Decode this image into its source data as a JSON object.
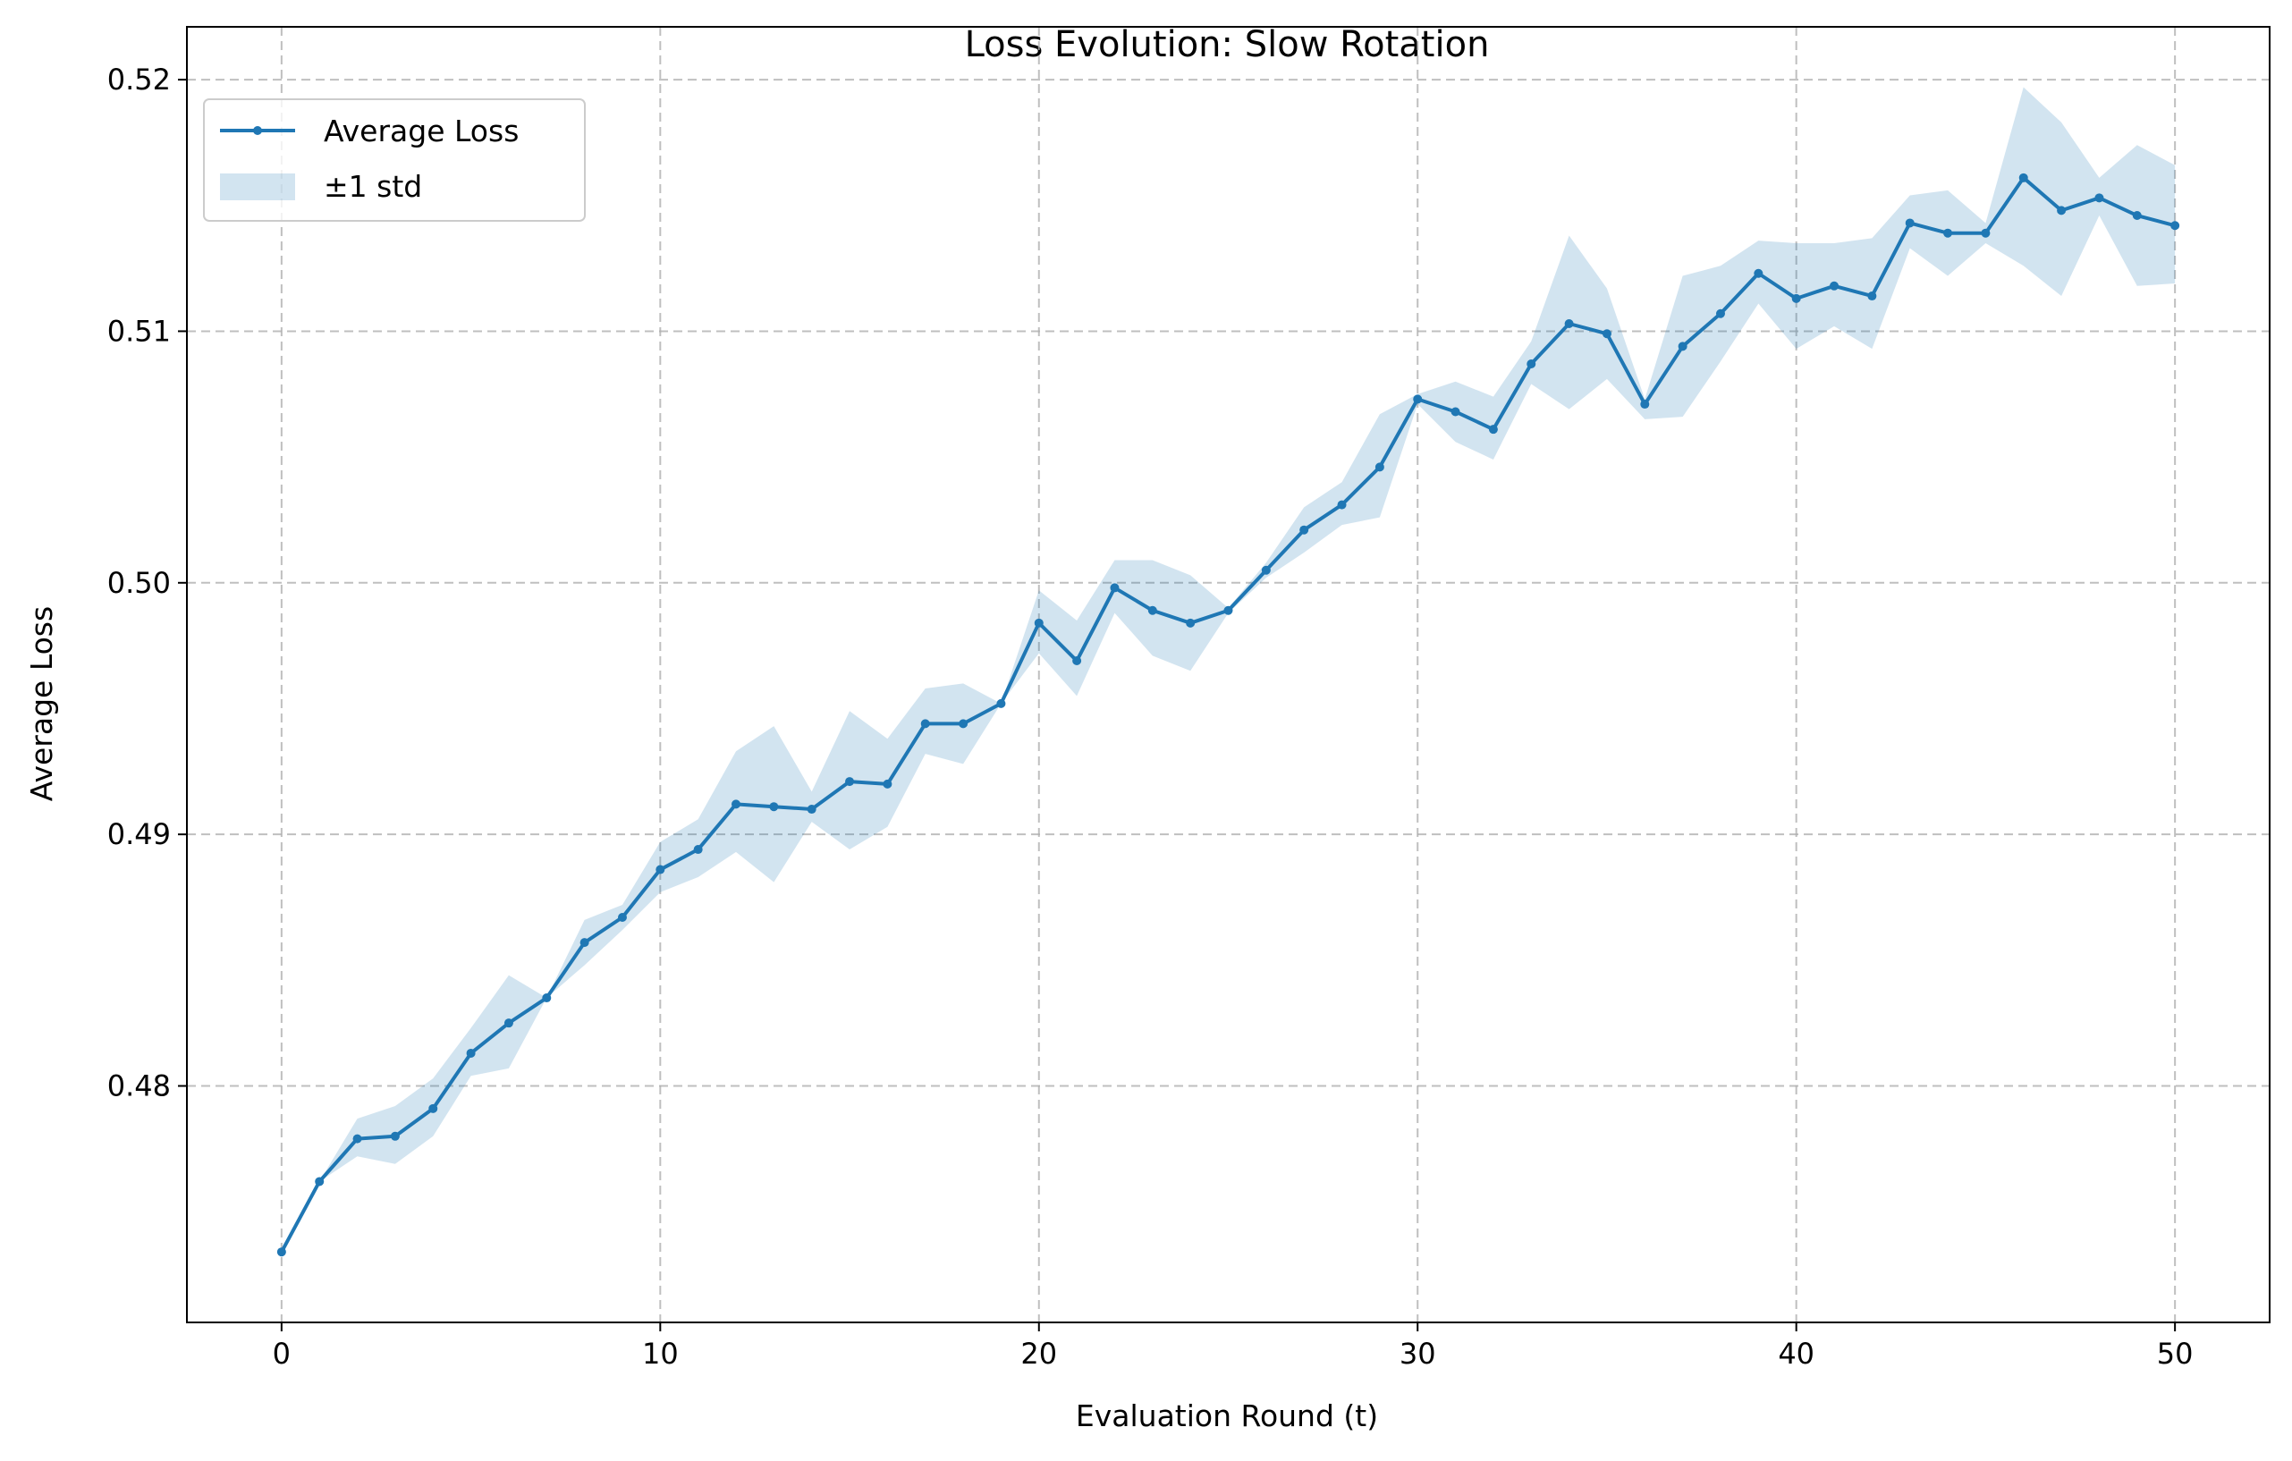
{
  "chart_data": {
    "type": "line",
    "title": "Loss Evolution: Slow Rotation",
    "xlabel": "Evaluation Round (t)",
    "ylabel": "Average Loss",
    "xlim": [
      -2.5,
      52.5
    ],
    "ylim": [
      0.4706,
      0.5221
    ],
    "x_ticks": [
      0,
      10,
      20,
      30,
      40,
      50
    ],
    "x_tick_labels": [
      "0",
      "10",
      "20",
      "30",
      "40",
      "50"
    ],
    "y_ticks": [
      0.48,
      0.49,
      0.5,
      0.51,
      0.52
    ],
    "y_tick_labels": [
      "0.48",
      "0.49",
      "0.50",
      "0.51",
      "0.52"
    ],
    "grid": true,
    "legend_position": "top-left",
    "legend": [
      "Average Loss",
      "±1 std"
    ],
    "line_color": "#1f77b4",
    "band_color": "#1f77b4",
    "series": [
      {
        "name": "Average Loss",
        "x": [
          0,
          1,
          2,
          3,
          4,
          5,
          6,
          7,
          8,
          9,
          10,
          11,
          12,
          13,
          14,
          15,
          16,
          17,
          18,
          19,
          20,
          21,
          22,
          23,
          24,
          25,
          26,
          27,
          28,
          29,
          30,
          31,
          32,
          33,
          34,
          35,
          36,
          37,
          38,
          39,
          40,
          41,
          42,
          43,
          44,
          45,
          46,
          47,
          48,
          49,
          50
        ],
        "values": [
          0.4734,
          0.4762,
          0.4779,
          0.478,
          0.4791,
          0.4813,
          0.4825,
          0.4835,
          0.4857,
          0.4867,
          0.4886,
          0.4894,
          0.4912,
          0.4911,
          0.491,
          0.4921,
          0.492,
          0.4944,
          0.4944,
          0.4952,
          0.4984,
          0.4969,
          0.4998,
          0.4989,
          0.4984,
          0.4989,
          0.5005,
          0.5021,
          0.5031,
          0.5046,
          0.5073,
          0.5068,
          0.5061,
          0.5087,
          0.5103,
          0.5099,
          0.5071,
          0.5094,
          0.5107,
          0.5123,
          0.5113,
          0.5118,
          0.5114,
          0.5143,
          0.5139,
          0.5139,
          0.5161,
          0.5148,
          0.5153,
          0.5146,
          0.5142
        ]
      },
      {
        "name": "±1 std",
        "upper": [
          0.4734,
          0.4762,
          0.4787,
          0.4792,
          0.4803,
          0.4823,
          0.4844,
          0.4835,
          0.4866,
          0.4872,
          0.4897,
          0.4906,
          0.4933,
          0.4943,
          0.4917,
          0.4949,
          0.4938,
          0.4958,
          0.496,
          0.4952,
          0.4997,
          0.4985,
          0.5009,
          0.5009,
          0.5003,
          0.499,
          0.5008,
          0.503,
          0.504,
          0.5067,
          0.5075,
          0.508,
          0.5074,
          0.5096,
          0.5138,
          0.5117,
          0.5073,
          0.5122,
          0.5126,
          0.5136,
          0.5135,
          0.5135,
          0.5137,
          0.5154,
          0.5156,
          0.5143,
          0.5197,
          0.5183,
          0.5161,
          0.5174,
          0.5166
        ],
        "lower": [
          0.4734,
          0.4762,
          0.4772,
          0.4769,
          0.478,
          0.4804,
          0.4807,
          0.4835,
          0.4848,
          0.4862,
          0.4877,
          0.4883,
          0.4893,
          0.4881,
          0.4905,
          0.4894,
          0.4903,
          0.4932,
          0.4928,
          0.4952,
          0.4972,
          0.4955,
          0.4988,
          0.4971,
          0.4965,
          0.4988,
          0.5002,
          0.5012,
          0.5023,
          0.5026,
          0.5071,
          0.5056,
          0.5049,
          0.5079,
          0.5069,
          0.5081,
          0.5065,
          0.5066,
          0.5088,
          0.5111,
          0.5093,
          0.5102,
          0.5093,
          0.5133,
          0.5122,
          0.5135,
          0.5126,
          0.5114,
          0.5146,
          0.5118,
          0.5119
        ]
      }
    ]
  }
}
